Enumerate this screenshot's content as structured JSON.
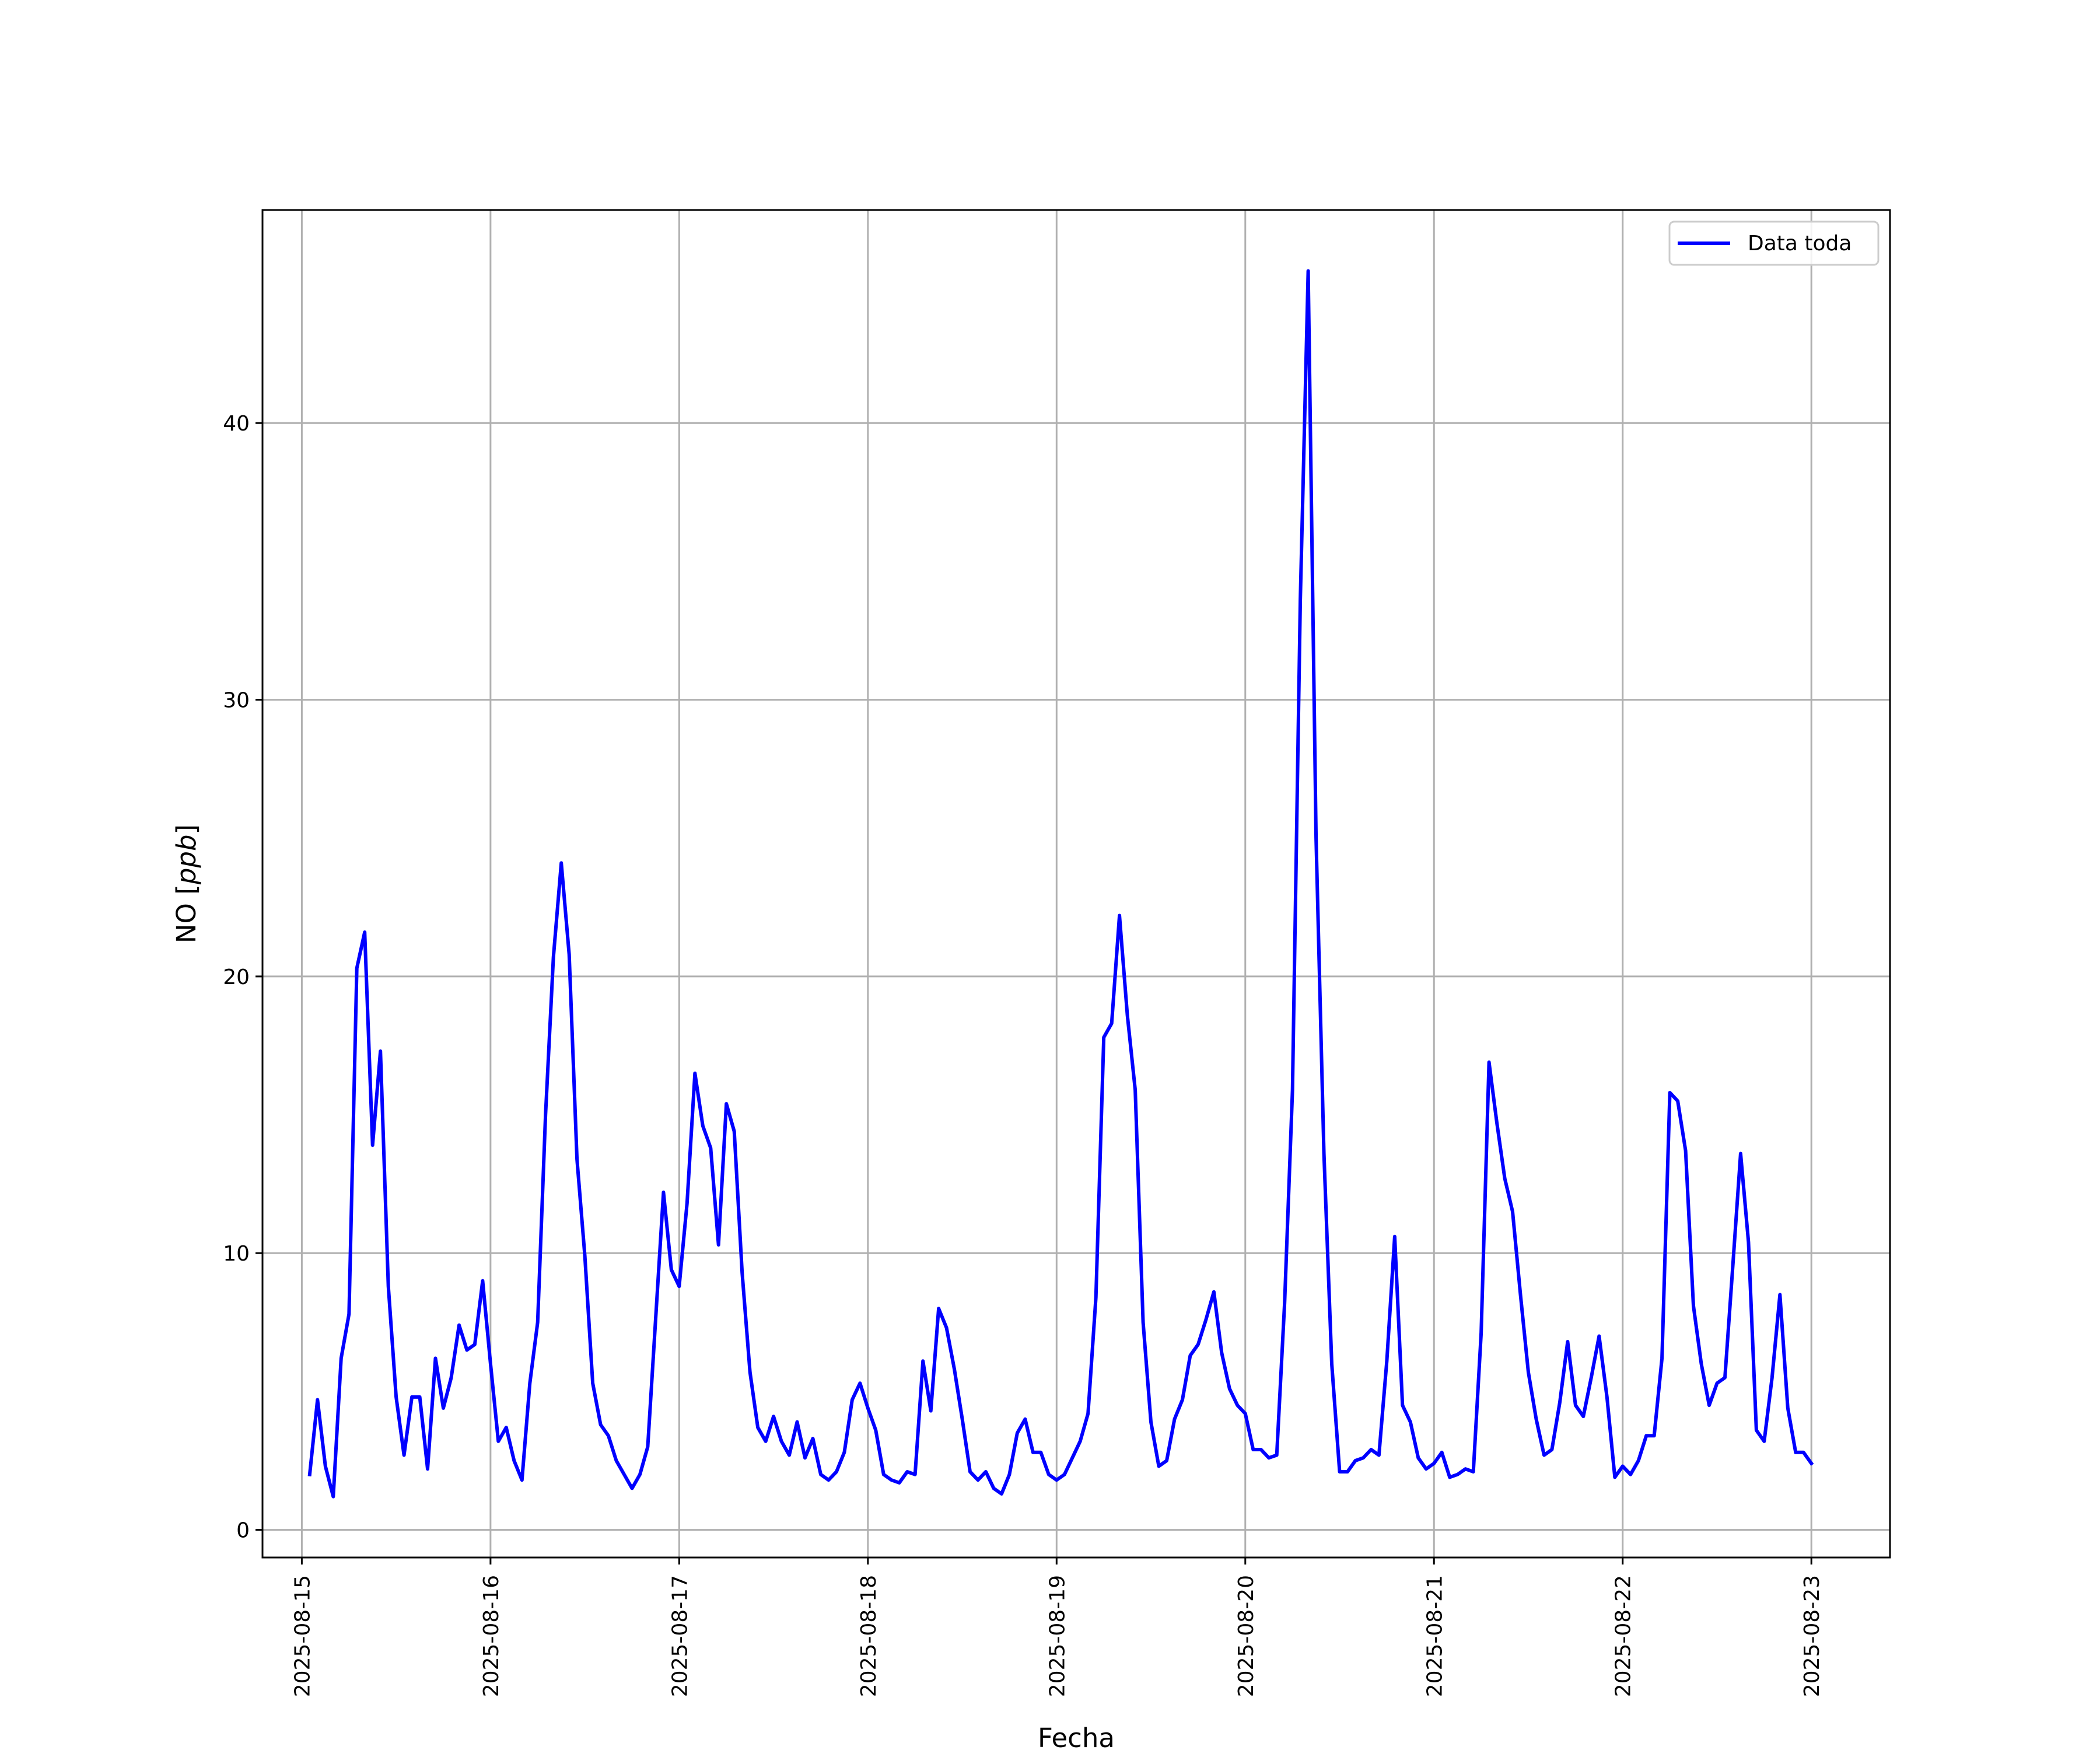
{
  "chart_data": {
    "type": "line",
    "xlabel": "Fecha",
    "ylabel": "NO [ppb]",
    "ylabel_parts": {
      "prefix": "NO [",
      "unit": "ppb",
      "suffix": "]"
    },
    "x_ticks": [
      "2025-08-15",
      "2025-08-16",
      "2025-08-17",
      "2025-08-18",
      "2025-08-19",
      "2025-08-20",
      "2025-08-21",
      "2025-08-22",
      "2025-08-23"
    ],
    "y_ticks": [
      0,
      10,
      20,
      30,
      40
    ],
    "xlim": [
      "2025-08-14T19:00",
      "2025-08-23T10:00"
    ],
    "ylim": [
      -1,
      47.7
    ],
    "grid": true,
    "legend_position": "top-right",
    "series": [
      {
        "name": "Data toda",
        "color": "#0000ff",
        "x": [
          "2025-08-15T01:00",
          "2025-08-15T02:00",
          "2025-08-15T03:00",
          "2025-08-15T04:00",
          "2025-08-15T05:00",
          "2025-08-15T06:00",
          "2025-08-15T07:00",
          "2025-08-15T08:00",
          "2025-08-15T09:00",
          "2025-08-15T10:00",
          "2025-08-15T11:00",
          "2025-08-15T12:00",
          "2025-08-15T13:00",
          "2025-08-15T14:00",
          "2025-08-15T15:00",
          "2025-08-15T16:00",
          "2025-08-15T17:00",
          "2025-08-15T18:00",
          "2025-08-15T19:00",
          "2025-08-15T20:00",
          "2025-08-15T21:00",
          "2025-08-15T22:00",
          "2025-08-15T23:00",
          "2025-08-16T00:00",
          "2025-08-16T01:00",
          "2025-08-16T02:00",
          "2025-08-16T03:00",
          "2025-08-16T04:00",
          "2025-08-16T05:00",
          "2025-08-16T06:00",
          "2025-08-16T07:00",
          "2025-08-16T08:00",
          "2025-08-16T09:00",
          "2025-08-16T10:00",
          "2025-08-16T11:00",
          "2025-08-16T12:00",
          "2025-08-16T13:00",
          "2025-08-16T14:00",
          "2025-08-16T15:00",
          "2025-08-16T16:00",
          "2025-08-16T17:00",
          "2025-08-16T18:00",
          "2025-08-16T19:00",
          "2025-08-16T20:00",
          "2025-08-16T21:00",
          "2025-08-16T22:00",
          "2025-08-16T23:00",
          "2025-08-17T00:00",
          "2025-08-17T01:00",
          "2025-08-17T02:00",
          "2025-08-17T03:00",
          "2025-08-17T04:00",
          "2025-08-17T05:00",
          "2025-08-17T06:00",
          "2025-08-17T07:00",
          "2025-08-17T08:00",
          "2025-08-17T09:00",
          "2025-08-17T10:00",
          "2025-08-17T11:00",
          "2025-08-17T12:00",
          "2025-08-17T13:00",
          "2025-08-17T14:00",
          "2025-08-17T15:00",
          "2025-08-17T16:00",
          "2025-08-17T17:00",
          "2025-08-17T18:00",
          "2025-08-17T19:00",
          "2025-08-17T20:00",
          "2025-08-17T21:00",
          "2025-08-17T22:00",
          "2025-08-17T23:00",
          "2025-08-18T00:00",
          "2025-08-18T01:00",
          "2025-08-18T02:00",
          "2025-08-18T03:00",
          "2025-08-18T04:00",
          "2025-08-18T05:00",
          "2025-08-18T06:00",
          "2025-08-18T07:00",
          "2025-08-18T08:00",
          "2025-08-18T09:00",
          "2025-08-18T10:00",
          "2025-08-18T11:00",
          "2025-08-18T12:00",
          "2025-08-18T13:00",
          "2025-08-18T14:00",
          "2025-08-18T15:00",
          "2025-08-18T16:00",
          "2025-08-18T17:00",
          "2025-08-18T18:00",
          "2025-08-18T19:00",
          "2025-08-18T20:00",
          "2025-08-18T21:00",
          "2025-08-18T22:00",
          "2025-08-18T23:00",
          "2025-08-19T00:00",
          "2025-08-19T01:00",
          "2025-08-19T02:00",
          "2025-08-19T03:00",
          "2025-08-19T04:00",
          "2025-08-19T05:00",
          "2025-08-19T06:00",
          "2025-08-19T07:00",
          "2025-08-19T08:00",
          "2025-08-19T09:00",
          "2025-08-19T10:00",
          "2025-08-19T11:00",
          "2025-08-19T12:00",
          "2025-08-19T13:00",
          "2025-08-19T14:00",
          "2025-08-19T15:00",
          "2025-08-19T16:00",
          "2025-08-19T17:00",
          "2025-08-19T18:00",
          "2025-08-19T19:00",
          "2025-08-19T20:00",
          "2025-08-19T21:00",
          "2025-08-19T22:00",
          "2025-08-19T23:00",
          "2025-08-20T00:00",
          "2025-08-20T01:00",
          "2025-08-20T02:00",
          "2025-08-20T03:00",
          "2025-08-20T04:00",
          "2025-08-20T05:00",
          "2025-08-20T06:00",
          "2025-08-20T07:00",
          "2025-08-20T08:00",
          "2025-08-20T09:00",
          "2025-08-20T10:00",
          "2025-08-20T11:00",
          "2025-08-20T12:00",
          "2025-08-20T13:00",
          "2025-08-20T14:00",
          "2025-08-20T15:00",
          "2025-08-20T16:00",
          "2025-08-20T17:00",
          "2025-08-20T18:00",
          "2025-08-20T19:00",
          "2025-08-20T20:00",
          "2025-08-20T21:00",
          "2025-08-20T22:00",
          "2025-08-20T23:00",
          "2025-08-21T00:00",
          "2025-08-21T01:00",
          "2025-08-21T02:00",
          "2025-08-21T03:00",
          "2025-08-21T04:00",
          "2025-08-21T05:00",
          "2025-08-21T06:00",
          "2025-08-21T07:00",
          "2025-08-21T08:00",
          "2025-08-21T09:00",
          "2025-08-21T10:00",
          "2025-08-21T11:00",
          "2025-08-21T12:00",
          "2025-08-21T13:00",
          "2025-08-21T14:00",
          "2025-08-21T15:00",
          "2025-08-21T16:00",
          "2025-08-21T17:00",
          "2025-08-21T18:00",
          "2025-08-21T19:00",
          "2025-08-21T20:00",
          "2025-08-21T21:00",
          "2025-08-21T22:00",
          "2025-08-21T23:00",
          "2025-08-22T00:00",
          "2025-08-22T01:00",
          "2025-08-22T02:00",
          "2025-08-22T03:00",
          "2025-08-22T04:00",
          "2025-08-22T05:00",
          "2025-08-22T06:00",
          "2025-08-22T07:00",
          "2025-08-22T08:00",
          "2025-08-22T09:00",
          "2025-08-22T10:00",
          "2025-08-22T11:00",
          "2025-08-22T12:00",
          "2025-08-22T13:00",
          "2025-08-22T14:00",
          "2025-08-22T15:00",
          "2025-08-22T16:00",
          "2025-08-22T17:00",
          "2025-08-22T18:00",
          "2025-08-22T19:00",
          "2025-08-22T20:00",
          "2025-08-22T21:00",
          "2025-08-22T22:00",
          "2025-08-22T23:00",
          "2025-08-23T00:00"
        ],
        "y": [
          2.0,
          4.7,
          2.3,
          1.2,
          6.2,
          7.8,
          20.3,
          21.6,
          13.9,
          17.3,
          8.8,
          4.8,
          2.7,
          4.8,
          4.8,
          2.2,
          6.2,
          4.4,
          5.5,
          7.4,
          6.5,
          6.7,
          9.0,
          6.0,
          3.2,
          3.7,
          2.5,
          1.8,
          5.3,
          7.5,
          15.0,
          20.7,
          24.1,
          20.8,
          13.4,
          9.9,
          5.3,
          3.8,
          3.4,
          2.5,
          2.0,
          1.5,
          2.0,
          3.0,
          7.6,
          12.2,
          9.4,
          8.8,
          11.8,
          16.5,
          14.6,
          13.8,
          10.3,
          15.4,
          14.4,
          9.3,
          5.7,
          3.7,
          3.2,
          4.1,
          3.2,
          2.7,
          3.9,
          2.6,
          3.3,
          2.0,
          1.8,
          2.1,
          2.8,
          4.7,
          5.3,
          4.4,
          3.6,
          2.0,
          1.8,
          1.7,
          2.1,
          2.0,
          6.1,
          4.3,
          8.0,
          7.3,
          5.8,
          4.0,
          2.1,
          1.8,
          2.1,
          1.5,
          1.3,
          2.0,
          3.5,
          4.0,
          2.8,
          2.8,
          2.0,
          1.8,
          2.0,
          2.6,
          3.2,
          4.2,
          8.4,
          17.8,
          18.3,
          22.2,
          18.6,
          15.9,
          7.5,
          3.9,
          2.3,
          2.5,
          4.0,
          4.7,
          6.3,
          6.7,
          7.6,
          8.6,
          6.4,
          5.1,
          4.5,
          4.2,
          2.9,
          2.9,
          2.6,
          2.7,
          8.2,
          15.9,
          33.6,
          45.5,
          25.0,
          13.6,
          6.0,
          2.1,
          2.1,
          2.5,
          2.6,
          2.9,
          2.7,
          6.1,
          10.6,
          4.5,
          3.9,
          2.6,
          2.2,
          2.4,
          2.8,
          1.9,
          2.0,
          2.2,
          2.1,
          7.1,
          16.9,
          14.7,
          12.7,
          11.5,
          8.5,
          5.7,
          4.0,
          2.7,
          2.9,
          4.6,
          6.8,
          4.5,
          4.1,
          5.5,
          7.0,
          4.8,
          1.9,
          2.3,
          2.0,
          2.5,
          3.4,
          3.4,
          6.2,
          15.8,
          15.5,
          13.7,
          8.1,
          6.0,
          4.5,
          5.3,
          5.5,
          9.5,
          13.6,
          10.4,
          3.6,
          3.2,
          5.5,
          8.5,
          4.4,
          2.8,
          2.8,
          2.4
        ]
      }
    ]
  }
}
